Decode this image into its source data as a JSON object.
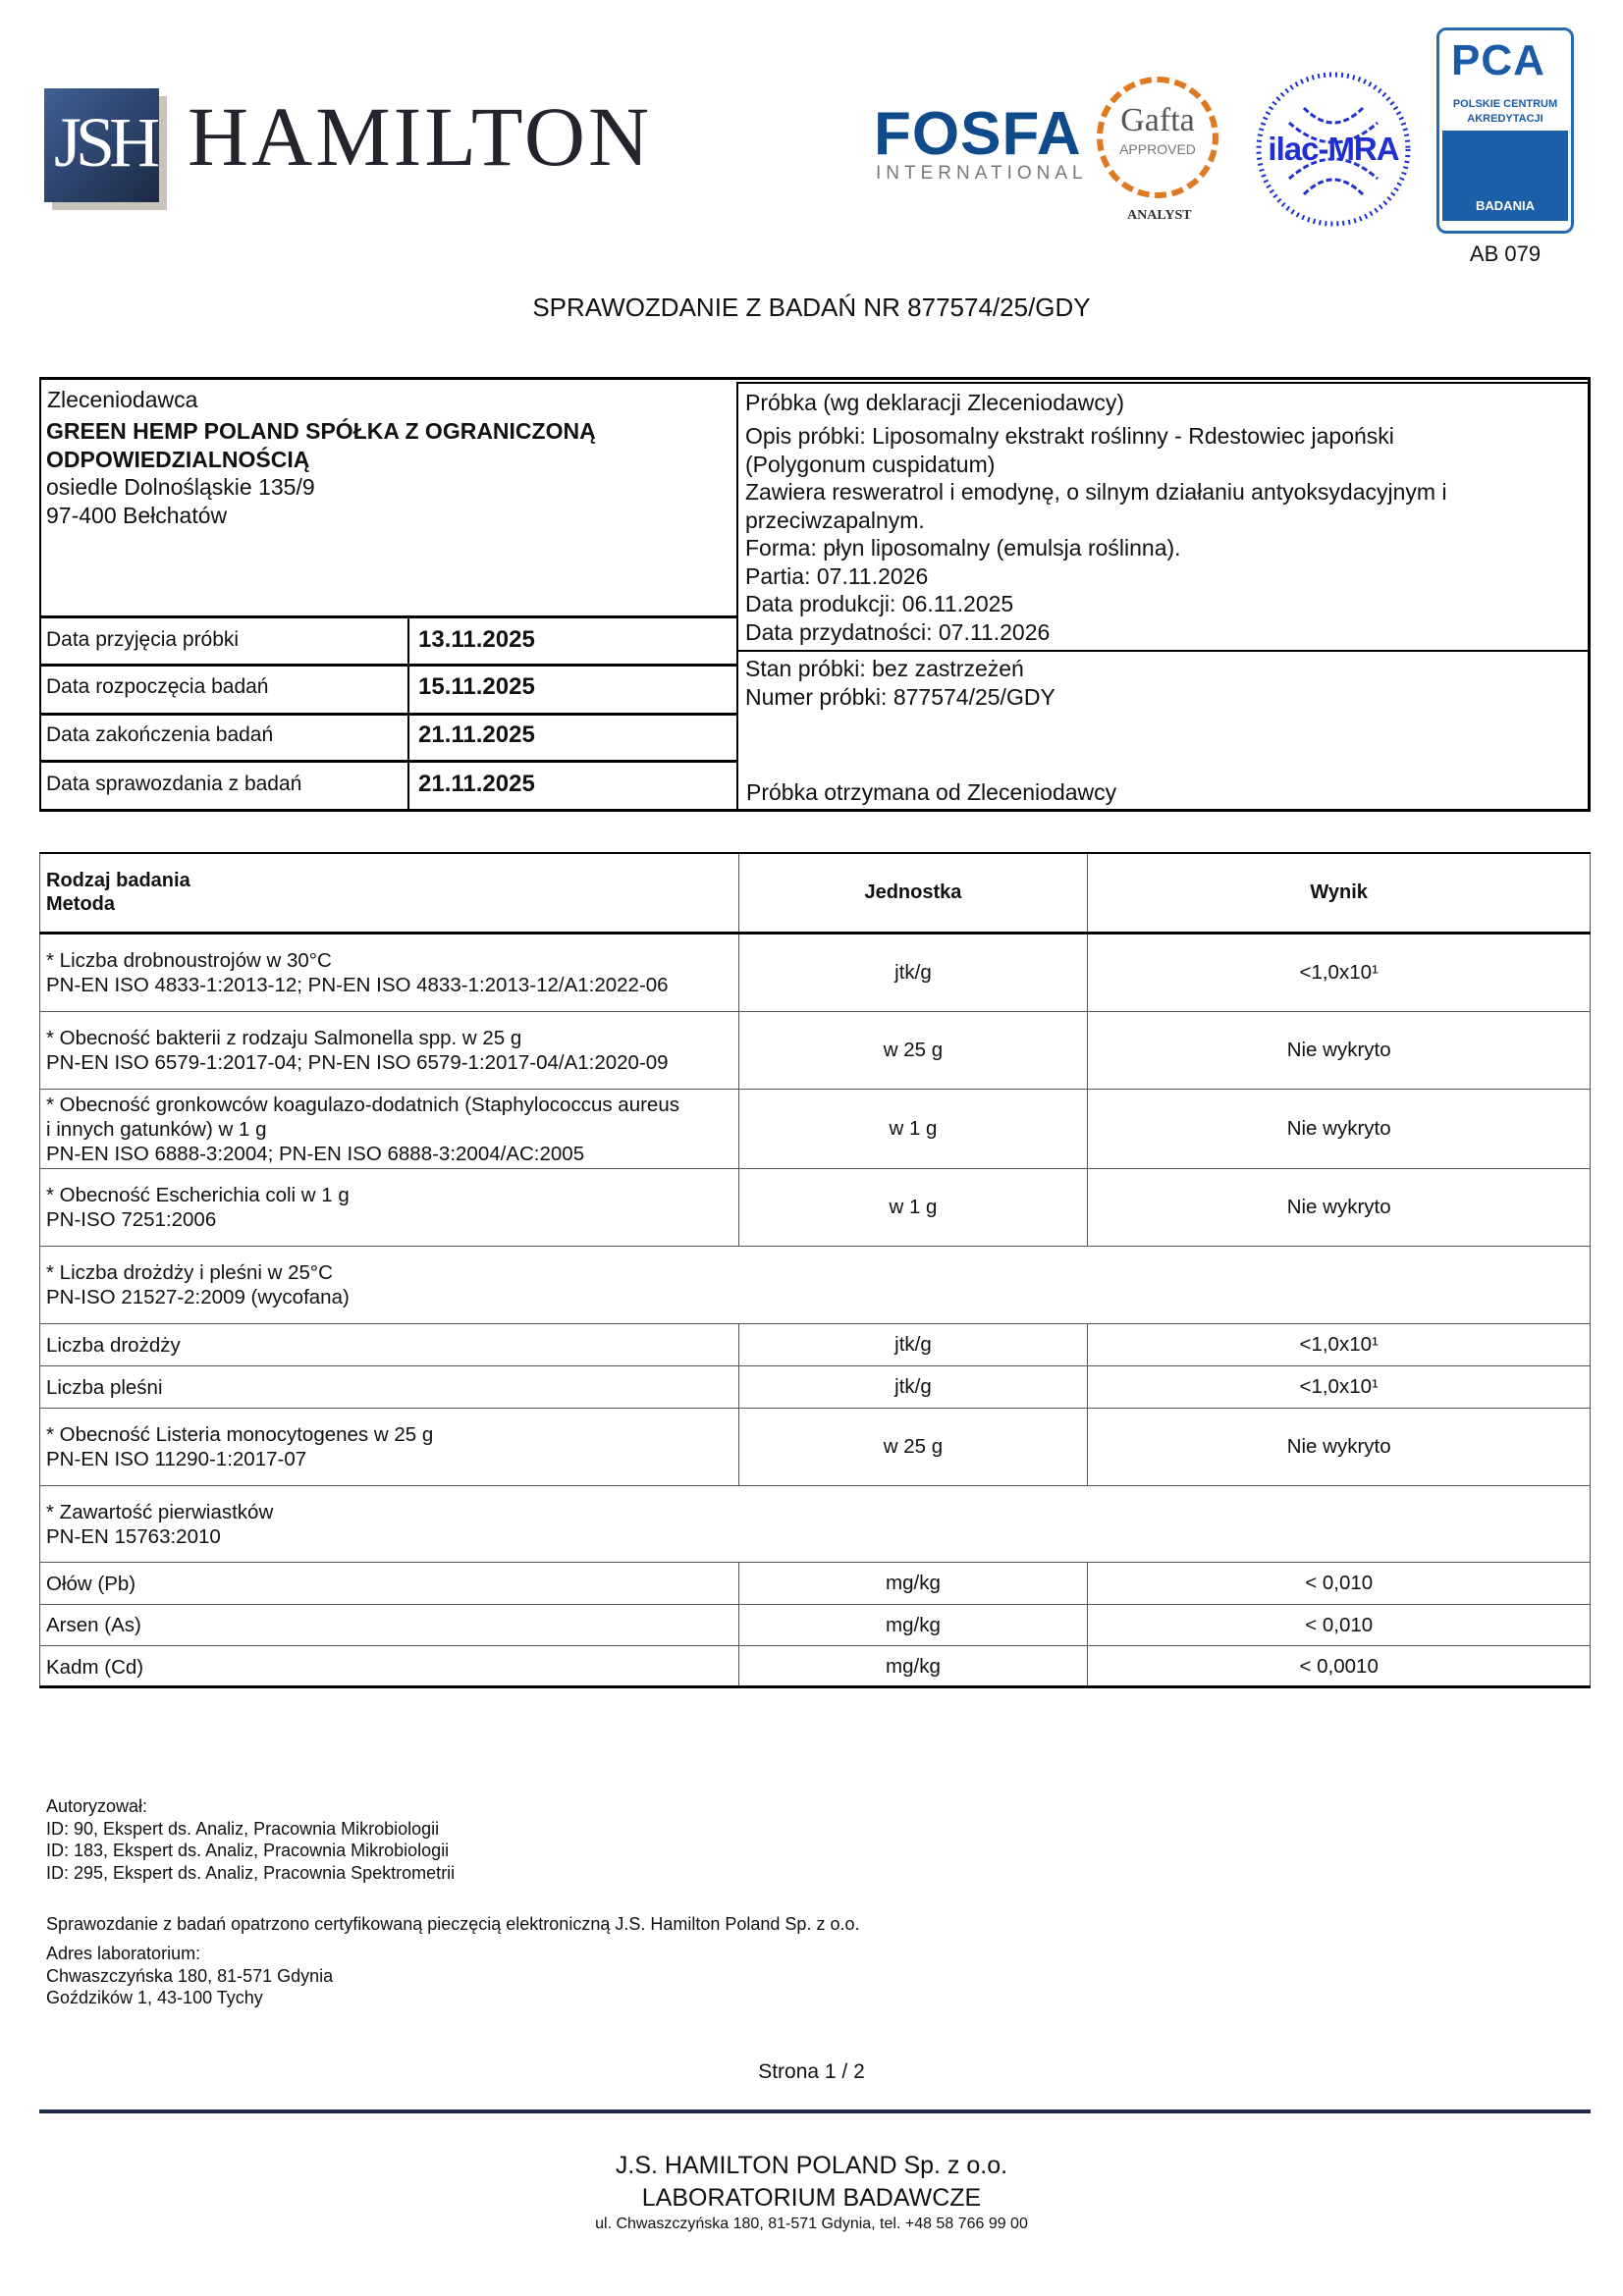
{
  "header": {
    "logo_monogram": "JSH",
    "logo_name": "HAMILTON",
    "fosfa": "FOSFA",
    "fosfa_sub": "INTERNATIONAL",
    "gafta": "Gafta",
    "gafta_approved": "APPROVED",
    "gafta_analyst": "ANALYST",
    "ilac": "ilac-MRA",
    "pca": "PCA",
    "pca_name_1": "POLSKIE CENTRUM",
    "pca_name_2": "AKREDYTACJI",
    "pca_badania": "BADANIA",
    "accreditation": "AB 079",
    "colors": {
      "navy": "#1d2a4a",
      "fosfa": "#0f4a8a",
      "gafta": "#e07a22",
      "ilac": "#1f2fd0",
      "pca": "#1b5fa8"
    }
  },
  "title": "SPRAWOZDANIE Z BADAŃ NR 877574/25/GDY",
  "client": {
    "label": "Zleceniodawca",
    "name": "GREEN HEMP POLAND SPÓŁKA Z OGRANICZONĄ\nODPOWIEDZIALNOŚCIĄ",
    "address": "osiedle Dolnośląskie 135/9\n97-400  Bełchatów"
  },
  "dates": [
    {
      "label": "Data przyjęcia próbki",
      "value": "13.11.2025"
    },
    {
      "label": "Data rozpoczęcia badań",
      "value": "15.11.2025"
    },
    {
      "label": "Data zakończenia badań",
      "value": "21.11.2025"
    },
    {
      "label": "Data sprawozdania z badań",
      "value": "21.11.2025"
    }
  ],
  "sample": {
    "label": "Próbka (wg deklaracji Zleceniodawcy)",
    "description": "Opis próbki: Liposomalny ekstrakt roślinny - Rdestowiec japoński\n(Polygonum cuspidatum)\nZawiera resweratrol i emodynę, o silnym działaniu antyoksydacyjnym i\nprzeciwzapalnym.\nForma: płyn liposomalny (emulsja roślinna).\nPartia: 07.11.2026\nData produkcji: 06.11.2025\nData przydatności: 07.11.2026",
    "condition": "Stan próbki: bez zastrzeżeń\nNumer próbki: 877574/25/GDY",
    "source": "Próbka otrzymana od Zleceniodawcy"
  },
  "results": {
    "headers": [
      "Rodzaj badania\nMetoda",
      "Jednostka",
      "Wynik"
    ],
    "rows": [
      {
        "type": "full",
        "test": "* Liczba drobnoustrojów w 30°C\n  PN-EN ISO 4833-1:2013-12; PN-EN ISO 4833-1:2013-12/A1:2022-06",
        "unit": "jtk/g",
        "result": "<1,0x10¹"
      },
      {
        "type": "full",
        "test": "* Obecność bakterii z rodzaju Salmonella spp. w 25 g\n  PN-EN ISO 6579-1:2017-04; PN-EN ISO 6579-1:2017-04/A1:2020-09",
        "unit": "w 25 g",
        "result": "Nie wykryto"
      },
      {
        "type": "full",
        "test": "* Obecność gronkowców koagulazo-dodatnich (Staphylococcus aureus\ni innych gatunków) w 1 g\n  PN-EN ISO 6888-3:2004; PN-EN ISO 6888-3:2004/AC:2005",
        "unit": "w 1 g",
        "result": "Nie wykryto"
      },
      {
        "type": "full",
        "test": "* Obecność Escherichia coli w 1 g\n  PN-ISO 7251:2006",
        "unit": "w 1 g",
        "result": "Nie wykryto"
      },
      {
        "type": "group",
        "test": "* Liczba drożdży i pleśni w 25°C\n  PN-ISO 21527-2:2009 (wycofana)"
      },
      {
        "type": "full",
        "test": "Liczba drożdży",
        "unit": "jtk/g",
        "result": "<1,0x10¹"
      },
      {
        "type": "full",
        "test": "Liczba pleśni",
        "unit": "jtk/g",
        "result": "<1,0x10¹"
      },
      {
        "type": "full",
        "test": "* Obecność Listeria monocytogenes w 25 g\n  PN-EN ISO 11290-1:2017-07",
        "unit": "w 25 g",
        "result": "Nie wykryto"
      },
      {
        "type": "group",
        "test": "* Zawartość pierwiastków\n  PN-EN 15763:2010"
      },
      {
        "type": "full",
        "test": "Ołów (Pb)",
        "unit": "mg/kg",
        "result": "< 0,010"
      },
      {
        "type": "full",
        "test": "Arsen (As)",
        "unit": "mg/kg",
        "result": "< 0,010"
      },
      {
        "type": "full",
        "test": "Kadm (Cd)",
        "unit": "mg/kg",
        "result": "< 0,0010"
      }
    ]
  },
  "authorization": "Autoryzował:\nID: 90, Ekspert ds. Analiz, Pracownia Mikrobiologii\nID: 183, Ekspert ds. Analiz, Pracownia Mikrobiologii\nID: 295, Ekspert ds. Analiz, Pracownia Spektrometrii",
  "seal_note": "Sprawozdanie z badań opatrzono certyfikowaną pieczęcią elektroniczną J.S. Hamilton Poland Sp. z o.o.",
  "lab_address": "Adres laboratorium:\nChwaszczyńska 180, 81-571 Gdynia\nGoździków 1, 43-100 Tychy",
  "page": "Strona  1 / 2",
  "footer": {
    "company": "J.S. HAMILTON POLAND Sp. z o.o.",
    "lab": "LABORATORIUM BADAWCZE",
    "contact": "ul. Chwaszczyńska 180, 81-571 Gdynia, tel. +48 58 766 99 00"
  }
}
